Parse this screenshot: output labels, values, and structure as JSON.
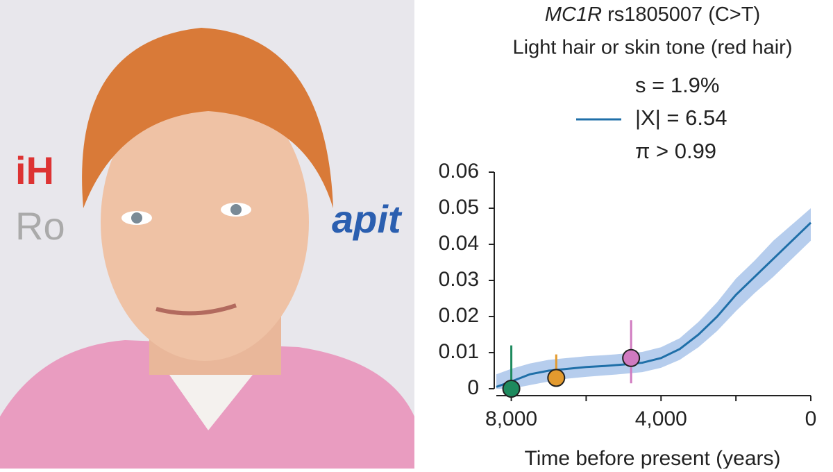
{
  "photo": {
    "backdrop_texts": [
      "iH",
      "Ro",
      "apit"
    ]
  },
  "chart_data": {
    "type": "line",
    "title_gene": "MC1R",
    "title_rest": "rs1805007 (C>T)",
    "subtitle": "Light hair or skin tone (red hair)",
    "legend": [
      "s = 1.9%",
      "|X| = 6.54",
      "π > 0.99"
    ],
    "xlabel": "Time before present (years)",
    "x": [
      8400,
      8000,
      7500,
      7000,
      6500,
      6000,
      5500,
      5000,
      4500,
      4000,
      3500,
      3000,
      2500,
      2000,
      1500,
      1000,
      500,
      0
    ],
    "series": [
      {
        "color": "#1f6fa8",
        "band_color": "#a9c4ea",
        "values": [
          0.0005,
          0.002,
          0.004,
          0.005,
          0.0055,
          0.006,
          0.0063,
          0.0067,
          0.0072,
          0.0085,
          0.011,
          0.015,
          0.02,
          0.026,
          0.031,
          0.036,
          0.041,
          0.046
        ],
        "lower": [
          0,
          0,
          0.001,
          0.002,
          0.0028,
          0.0033,
          0.0037,
          0.0041,
          0.0046,
          0.0058,
          0.008,
          0.0115,
          0.016,
          0.0215,
          0.0265,
          0.031,
          0.036,
          0.041
        ],
        "upper": [
          0.004,
          0.0055,
          0.007,
          0.008,
          0.0085,
          0.009,
          0.0093,
          0.0097,
          0.0102,
          0.0115,
          0.014,
          0.0185,
          0.024,
          0.0305,
          0.0355,
          0.041,
          0.0455,
          0.05
        ]
      }
    ],
    "points": {
      "x": [
        8000,
        6800,
        4800
      ],
      "values": [
        0,
        0.003,
        0.0085
      ],
      "low": [
        0,
        0.0005,
        0.0015
      ],
      "high": [
        0.012,
        0.0095,
        0.019
      ],
      "colors": [
        "#1e8a5e",
        "#e39a2e",
        "#d07ac0"
      ]
    },
    "xlim": [
      8400,
      0
    ],
    "ylim": [
      0,
      0.06
    ],
    "xticks": [
      {
        "value": 8000,
        "label": "8,000"
      },
      {
        "value": 4000,
        "label": "4,000"
      },
      0
    ],
    "xminor_ticks": [
      6000,
      2000
    ],
    "yticks": [
      0,
      0.01,
      0.02,
      0.03,
      0.04,
      0.05,
      0.06
    ]
  }
}
